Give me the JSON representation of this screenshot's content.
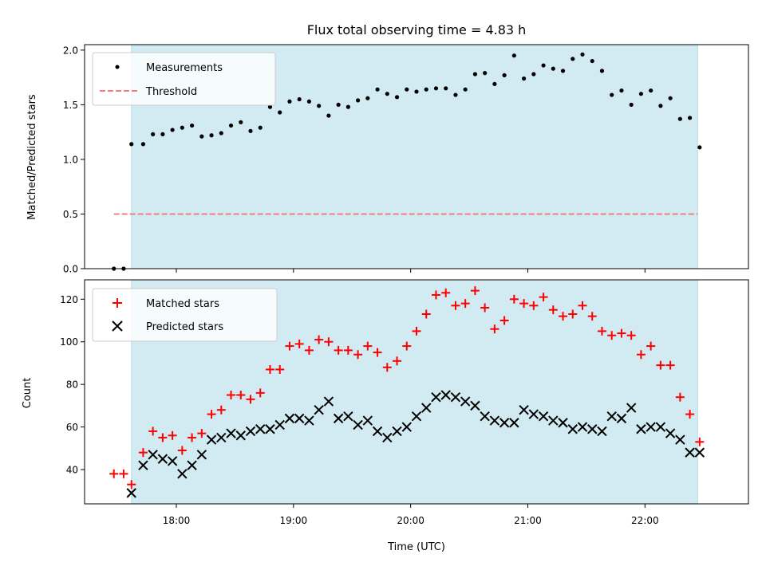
{
  "colors": {
    "background": "#ffffff",
    "observing_span": "#add8e6",
    "measurements": "#000000",
    "threshold": "#f08080",
    "matched": "#ff0000",
    "predicted": "#000000"
  },
  "chart_data": [
    {
      "type": "scatter",
      "title": "Flux total observing time = 4.83 h",
      "xlabel": "",
      "ylabel": "Matched/Predicted stars",
      "xlim": [
        "17:13",
        "22:53"
      ],
      "ylim": [
        0,
        2.05
      ],
      "ticks": [
        0.0,
        0.5,
        1.0,
        1.5,
        2.0
      ],
      "tick_labels": [
        "0.0",
        "0.5",
        "1.0",
        "1.5",
        "2.0"
      ],
      "observing_span": [
        "17:37",
        "22:27"
      ],
      "legend": {
        "position": "top-left",
        "entries": [
          "Measurements",
          "Threshold"
        ]
      },
      "threshold": {
        "name": "Threshold",
        "value": 0.5,
        "x_range": [
          "17:28",
          "22:27"
        ],
        "style": "dashed"
      },
      "series": [
        {
          "name": "Measurements",
          "x": [
            "17:28",
            "17:33",
            "17:37",
            "17:43",
            "17:48",
            "17:53",
            "17:58",
            "18:03",
            "18:08",
            "18:13",
            "18:18",
            "18:23",
            "18:28",
            "18:33",
            "18:38",
            "18:43",
            "18:48",
            "18:53",
            "18:58",
            "19:03",
            "19:08",
            "19:13",
            "19:18",
            "19:23",
            "19:28",
            "19:33",
            "19:38",
            "19:43",
            "19:48",
            "19:53",
            "19:58",
            "20:03",
            "20:08",
            "20:13",
            "20:18",
            "20:23",
            "20:28",
            "20:33",
            "20:38",
            "20:43",
            "20:48",
            "20:53",
            "20:58",
            "21:03",
            "21:08",
            "21:13",
            "21:18",
            "21:23",
            "21:28",
            "21:33",
            "21:38",
            "21:43",
            "21:48",
            "21:53",
            "21:58",
            "22:03",
            "22:08",
            "22:13",
            "22:18",
            "22:23",
            "22:28"
          ],
          "y": [
            0.0,
            0.0,
            1.14,
            1.14,
            1.23,
            1.23,
            1.27,
            1.29,
            1.31,
            1.21,
            1.22,
            1.24,
            1.31,
            1.34,
            1.26,
            1.29,
            1.48,
            1.43,
            1.53,
            1.55,
            1.53,
            1.49,
            1.4,
            1.5,
            1.48,
            1.54,
            1.56,
            1.64,
            1.6,
            1.57,
            1.64,
            1.62,
            1.64,
            1.65,
            1.65,
            1.59,
            1.64,
            1.78,
            1.79,
            1.69,
            1.77,
            1.95,
            1.74,
            1.78,
            1.86,
            1.83,
            1.81,
            1.92,
            1.96,
            1.9,
            1.81,
            1.59,
            1.63,
            1.5,
            1.6,
            1.63,
            1.49,
            1.56,
            1.37,
            1.38,
            1.11
          ]
        }
      ]
    },
    {
      "type": "scatter",
      "title": "",
      "xlabel": "Time (UTC)",
      "ylabel": "Count",
      "xlim": [
        "17:13",
        "22:53"
      ],
      "ylim": [
        23.9,
        129.1
      ],
      "ticks": [
        40,
        60,
        80,
        100,
        120
      ],
      "tick_labels": [
        "40",
        "60",
        "80",
        "100",
        "120"
      ],
      "x_ticks": [
        "18:00",
        "19:00",
        "20:00",
        "21:00",
        "22:00"
      ],
      "x_tick_labels": [
        "18:00",
        "19:00",
        "20:00",
        "21:00",
        "22:00"
      ],
      "observing_span": [
        "17:37",
        "22:27"
      ],
      "legend": {
        "position": "top-left",
        "entries": [
          "Matched stars",
          "Predicted stars"
        ]
      },
      "series": [
        {
          "name": "Matched stars",
          "marker": "+",
          "x": [
            "17:28",
            "17:33",
            "17:37",
            "17:43",
            "17:48",
            "17:53",
            "17:58",
            "18:03",
            "18:08",
            "18:13",
            "18:18",
            "18:23",
            "18:28",
            "18:33",
            "18:38",
            "18:43",
            "18:48",
            "18:53",
            "18:58",
            "19:03",
            "19:08",
            "19:13",
            "19:18",
            "19:23",
            "19:28",
            "19:33",
            "19:38",
            "19:43",
            "19:48",
            "19:53",
            "19:58",
            "20:03",
            "20:08",
            "20:13",
            "20:18",
            "20:23",
            "20:28",
            "20:33",
            "20:38",
            "20:43",
            "20:48",
            "20:53",
            "20:58",
            "21:03",
            "21:08",
            "21:13",
            "21:18",
            "21:23",
            "21:28",
            "21:33",
            "21:38",
            "21:43",
            "21:48",
            "21:53",
            "21:58",
            "22:03",
            "22:08",
            "22:13",
            "22:18",
            "22:23",
            "22:28"
          ],
          "y": [
            38,
            38,
            33,
            48,
            58,
            55,
            56,
            49,
            55,
            57,
            66,
            68,
            75,
            75,
            73,
            76,
            87,
            87,
            98,
            99,
            96,
            101,
            100,
            96,
            96,
            94,
            98,
            95,
            88,
            91,
            98,
            105,
            113,
            122,
            123,
            117,
            118,
            124,
            116,
            106,
            110,
            120,
            118,
            117,
            121,
            115,
            112,
            113,
            117,
            112,
            105,
            103,
            104,
            103,
            94,
            98,
            89,
            89,
            74,
            66,
            53
          ]
        },
        {
          "name": "Predicted stars",
          "marker": "x",
          "x": [
            "17:37",
            "17:43",
            "17:48",
            "17:53",
            "17:58",
            "18:03",
            "18:08",
            "18:13",
            "18:18",
            "18:23",
            "18:28",
            "18:33",
            "18:38",
            "18:43",
            "18:48",
            "18:53",
            "18:58",
            "19:03",
            "19:08",
            "19:13",
            "19:18",
            "19:23",
            "19:28",
            "19:33",
            "19:38",
            "19:43",
            "19:48",
            "19:53",
            "19:58",
            "20:03",
            "20:08",
            "20:13",
            "20:18",
            "20:23",
            "20:28",
            "20:33",
            "20:38",
            "20:43",
            "20:48",
            "20:53",
            "20:58",
            "21:03",
            "21:08",
            "21:13",
            "21:18",
            "21:23",
            "21:28",
            "21:33",
            "21:38",
            "21:43",
            "21:48",
            "21:53",
            "21:58",
            "22:03",
            "22:08",
            "22:13",
            "22:18",
            "22:23",
            "22:28"
          ],
          "y": [
            29,
            42,
            47,
            45,
            44,
            38,
            42,
            47,
            54,
            55,
            57,
            56,
            58,
            59,
            59,
            61,
            64,
            64,
            63,
            68,
            72,
            64,
            65,
            61,
            63,
            58,
            55,
            58,
            60,
            65,
            69,
            74,
            75,
            74,
            72,
            70,
            65,
            63,
            62,
            62,
            68,
            66,
            65,
            63,
            62,
            59,
            60,
            59,
            58,
            65,
            64,
            69,
            59,
            60,
            60,
            57,
            54,
            48,
            48
          ]
        }
      ]
    }
  ]
}
